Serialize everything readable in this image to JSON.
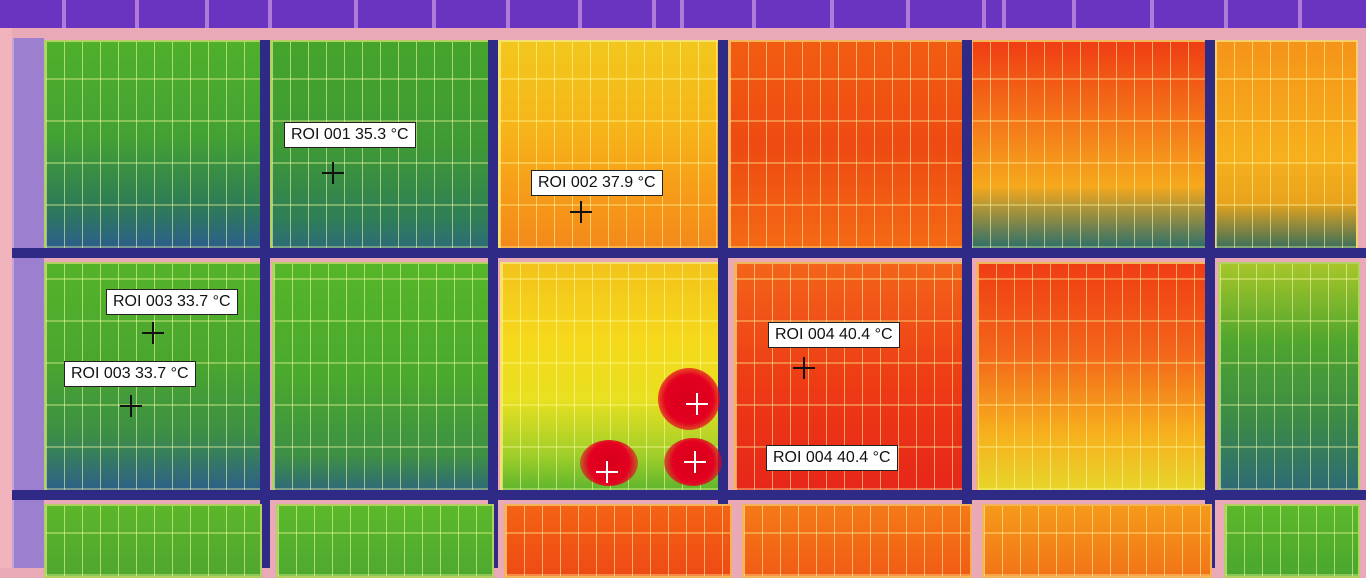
{
  "image": {
    "type": "thermal-image",
    "subject": "solar-panel-array",
    "palette": [
      "#2b2a8c",
      "#1f7d3a",
      "#5fb52d",
      "#f5e21a",
      "#ff8a0a",
      "#ea2a12"
    ]
  },
  "annotations": [
    {
      "label": "ROI 001 35.3 °C"
    },
    {
      "label": "ROI 002 37.9 °C"
    },
    {
      "label": "ROI 003 33.7 °C"
    },
    {
      "label": "ROI 003 33.7 °C"
    },
    {
      "label": "ROI 004 40.4 °C"
    },
    {
      "label": "ROI 004 40.4 °C"
    }
  ]
}
